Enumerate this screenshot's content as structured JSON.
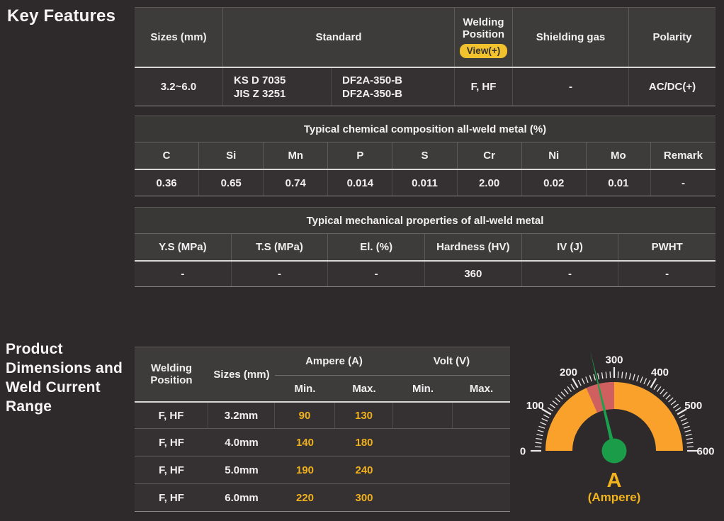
{
  "sections": {
    "key_features": "Key Features",
    "product_dimensions": "Product Dimensions and Weld Current Range"
  },
  "spec_table": {
    "headers": {
      "sizes": "Sizes (mm)",
      "standard": "Standard",
      "welding_position": "Welding Position",
      "view_badge": "View(+)",
      "shielding_gas": "Shielding gas",
      "polarity": "Polarity"
    },
    "row": {
      "sizes": "3.2~6.0",
      "standard_ks_line1": "KS D 7035",
      "standard_ks_line2": "JIS Z 3251",
      "standard_df_line1": "DF2A-350-B",
      "standard_df_line2": "DF2A-350-B",
      "welding_position": "F, HF",
      "shielding_gas": "-",
      "polarity": "AC/DC(+)"
    }
  },
  "chemical": {
    "title": "Typical chemical composition all-weld metal (%)",
    "columns": [
      "C",
      "Si",
      "Mn",
      "P",
      "S",
      "Cr",
      "Ni",
      "Mo",
      "Remark"
    ],
    "values": [
      "0.36",
      "0.65",
      "0.74",
      "0.014",
      "0.011",
      "2.00",
      "0.02",
      "0.01",
      "-"
    ]
  },
  "mechanical": {
    "title": "Typical mechanical properties of all-weld metal",
    "columns": [
      "Y.S (MPa)",
      "T.S (MPa)",
      "El. (%)",
      "Hardness (HV)",
      "IV (J)",
      "PWHT"
    ],
    "values": [
      "-",
      "-",
      "-",
      "360",
      "-",
      "-"
    ]
  },
  "current_range": {
    "headers": {
      "welding_position": "Welding Position",
      "sizes": "Sizes (mm)",
      "ampere": "Ampere (A)",
      "volt": "Volt (V)",
      "min": "Min.",
      "max": "Max."
    },
    "rows": [
      {
        "position": "F, HF",
        "size": "3.2mm",
        "amp_min": "90",
        "amp_max": "130",
        "volt_min": "",
        "volt_max": ""
      },
      {
        "position": "F, HF",
        "size": "4.0mm",
        "amp_min": "140",
        "amp_max": "180",
        "volt_min": "",
        "volt_max": ""
      },
      {
        "position": "F, HF",
        "size": "5.0mm",
        "amp_min": "190",
        "amp_max": "240",
        "volt_min": "",
        "volt_max": ""
      },
      {
        "position": "F, HF",
        "size": "6.0mm",
        "amp_min": "220",
        "amp_max": "300",
        "volt_min": "",
        "volt_max": ""
      }
    ],
    "value_color": "#efb01c"
  },
  "chart_data": {
    "type": "gauge",
    "unit": "A",
    "unit_label": "(Ampere)",
    "min": 0,
    "max": 600,
    "tick_minor_step": 10,
    "tick_major_step": 100,
    "tick_labels": [
      0,
      100,
      200,
      300,
      400,
      500,
      600
    ],
    "arc_color": "#f9a12b",
    "zones": [
      {
        "from": 220,
        "to": 300,
        "color": "#d05f5f"
      }
    ],
    "needle_value": 255,
    "needle_color": "#1aa14d",
    "hub_color": "#1a9c49",
    "tick_color": "#eceaea"
  }
}
